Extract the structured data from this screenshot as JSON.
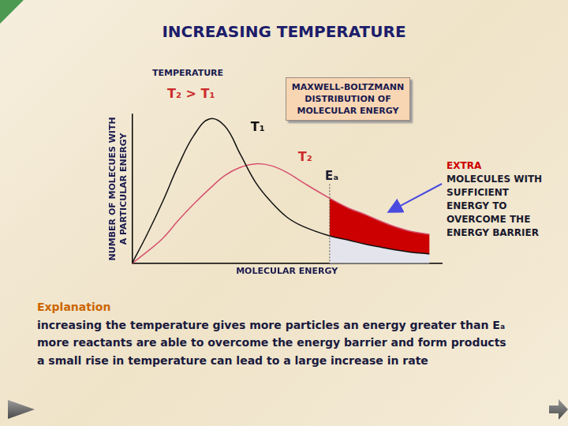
{
  "chart_data": {
    "type": "line",
    "title": "INCREASING TEMPERATURE",
    "x_label": "MOLECULAR ENERGY",
    "y_label": [
      "NUMBER OF MOLECUES WITH",
      "A PARTICULAR ENERGY"
    ],
    "x": [
      0,
      5,
      10,
      15,
      20,
      25,
      30,
      35,
      40,
      45,
      50,
      55,
      63.8,
      70,
      75,
      80,
      85,
      90,
      96
    ],
    "series": [
      {
        "name": "T₁",
        "color": "#111111",
        "values": [
          0,
          20,
          42,
          66,
          86,
          97,
          92,
          73,
          54,
          41,
          31,
          25,
          18.4,
          15.5,
          13,
          11,
          9,
          7.5,
          6.3
        ]
      },
      {
        "name": "T₂",
        "color": "#d6506e",
        "values": [
          0,
          8,
          17,
          29,
          40,
          50,
          59,
          64.5,
          66.8,
          65.5,
          61,
          54.5,
          43.7,
          37,
          33,
          28.5,
          24.5,
          21.5,
          19.5
        ]
      }
    ],
    "xlim": [
      0,
      100
    ],
    "ylim": [
      0,
      100
    ],
    "tick_labels": false,
    "grid": false,
    "legend_title": "TEMPERATURE",
    "temperature_relation": "T₂ > T₁",
    "box_text": [
      "MAXWELL-BOLTZMANN",
      "DISTRIBUTION OF",
      "MOLECULAR ENERGY"
    ],
    "ea": {
      "label": "Eₐ",
      "value": 63.8
    },
    "extra_annotation": {
      "highlight": "EXTRA",
      "lines": [
        "MOLECULES WITH",
        "SUFFICIENT",
        "ENERGY TO",
        "OVERCOME THE",
        "ENERGY BARRIER"
      ]
    },
    "explanation": {
      "heading": "Explanation",
      "lines": [
        "increasing the temperature gives more particles an energy greater than Eₐ",
        "more reactants are able to overcome the energy barrier and form products",
        "a small rise in temperature can lead to a large increase in rate"
      ]
    }
  }
}
